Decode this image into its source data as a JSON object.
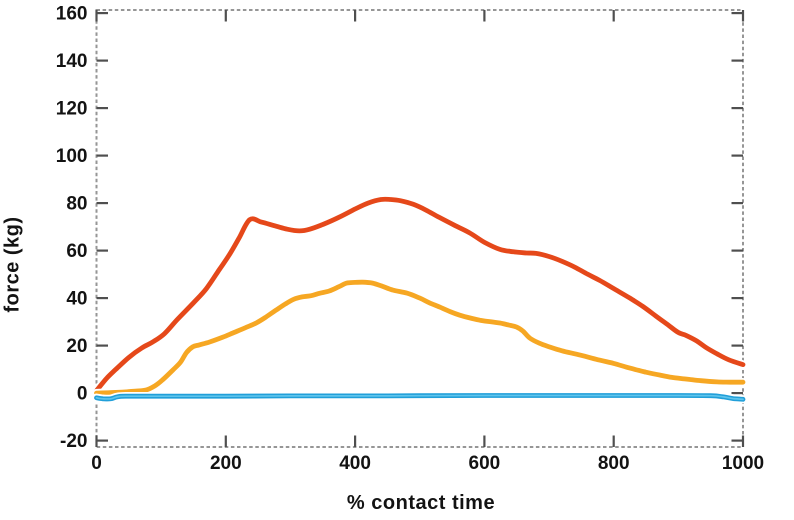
{
  "chart_data": {
    "type": "line",
    "title": "",
    "xlabel": "% contact time",
    "ylabel": "force (kg)",
    "xlim": [
      0,
      1000
    ],
    "ylim": [
      -22.7,
      161.3
    ],
    "grid": false,
    "legend": "none",
    "box_style": "dashed gray box with inward major ticks on all four sides",
    "x_ticks": [
      0,
      200,
      400,
      600,
      800,
      1000
    ],
    "x_tick_labels": [
      "0",
      "200",
      "400",
      "600",
      "800",
      "1000"
    ],
    "y_ticks": [
      -20,
      0,
      20,
      40,
      60,
      80,
      100,
      120,
      140,
      160
    ],
    "y_tick_labels": [
      "-20",
      "0",
      "20",
      "40",
      "60",
      "80",
      "100",
      "120",
      "140",
      "160"
    ],
    "colors": {
      "axis_border": "#969696",
      "major_tick": "#4f4f4f",
      "text": "#131313",
      "halo": "#ffffff"
    },
    "series": [
      {
        "name": "red-line",
        "color": "#e5481a",
        "x": [
          0,
          15,
          30,
          50,
          70,
          87,
          105,
          125,
          150,
          170,
          190,
          205,
          220,
          237,
          255,
          275,
          295,
          314,
          330,
          350,
          375,
          400,
          420,
          440,
          455,
          470,
          490,
          510,
          530,
          555,
          577,
          600,
          624,
          645,
          665,
          680,
          700,
          720,
          740,
          760,
          778,
          800,
          825,
          845,
          865,
          885,
          900,
          912,
          928,
          944,
          960,
          978,
          1000
        ],
        "y": [
          1,
          6,
          10,
          15,
          19,
          21.5,
          25,
          31,
          38,
          44,
          52,
          58,
          65,
          73,
          72,
          70.5,
          69,
          68.3,
          69,
          71,
          74,
          77.5,
          80,
          81.5,
          81.5,
          81,
          79.5,
          77,
          74,
          70.5,
          67.5,
          63.5,
          60.5,
          59.5,
          59,
          58.8,
          57.5,
          55.5,
          53,
          50,
          47.5,
          44,
          40,
          36.5,
          32.5,
          28.5,
          25.5,
          24.3,
          22,
          19,
          16.5,
          14,
          12
        ]
      },
      {
        "name": "orange-line",
        "color": "#f6a723",
        "x": [
          0,
          30,
          60,
          77,
          90,
          102,
          118,
          130,
          139,
          149,
          159,
          175,
          195,
          211,
          230,
          247,
          262,
          278,
          292,
          305,
          318,
          332,
          345,
          360,
          375,
          387,
          400,
          412,
          427,
          442,
          458,
          480,
          500,
          515,
          531,
          547,
          562,
          578,
          593,
          610,
          624,
          637,
          650,
          660,
          670,
          685,
          701,
          720,
          748,
          778,
          800,
          825,
          850,
          871,
          890,
          913,
          935,
          960,
          980,
          1000
        ],
        "y": [
          0,
          0.3,
          0.8,
          1.3,
          3,
          5.5,
          9.7,
          13,
          17,
          19.5,
          20.3,
          21.5,
          23.5,
          25.3,
          27.5,
          29.5,
          32,
          35,
          37.5,
          39.5,
          40.5,
          41,
          42,
          43,
          44.8,
          46.3,
          46.6,
          46.7,
          46.3,
          45,
          43.4,
          42.1,
          40,
          38,
          36.2,
          34.3,
          32.8,
          31.6,
          30.7,
          30,
          29.5,
          28.7,
          27.8,
          26,
          23.2,
          21,
          19.4,
          17.8,
          16,
          13.9,
          12.5,
          10.5,
          8.8,
          7.6,
          6.6,
          5.9,
          5.2,
          4.7,
          4.6,
          4.6
        ]
      },
      {
        "name": "blue-line",
        "color": "#219fd9",
        "highlight_color": "#5ec4ec",
        "x": [
          0,
          10,
          22,
          32,
          45,
          100,
          200,
          300,
          400,
          500,
          600,
          700,
          800,
          900,
          950,
          970,
          985,
          1000
        ],
        "y": [
          -2,
          -2.4,
          -2.4,
          -1.6,
          -1.3,
          -1.3,
          -1.3,
          -1.2,
          -1.2,
          -1.1,
          -1.0,
          -1.0,
          -1.0,
          -1.0,
          -1.1,
          -1.6,
          -2.3,
          -2.6
        ]
      }
    ]
  }
}
